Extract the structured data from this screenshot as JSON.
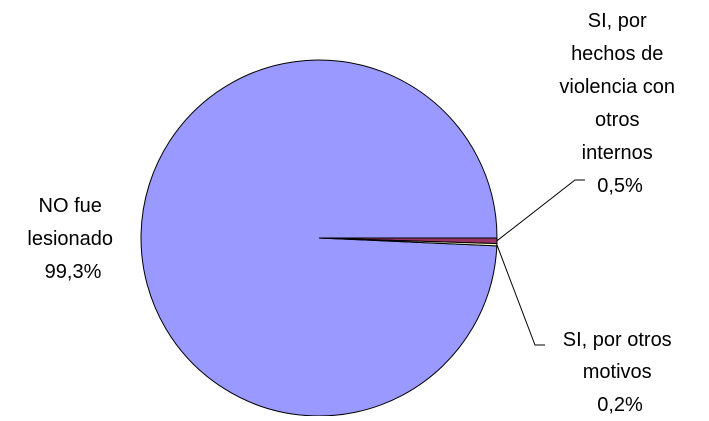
{
  "chart_data": {
    "type": "pie",
    "title": "",
    "start_angle_deg": 0,
    "direction": "clockwise",
    "series": [
      {
        "values": [
          99.3,
          0.5,
          0.2
        ],
        "labels": [
          "NO fue lesionado",
          "SI, por hechos de violencia con otros internos",
          "SI, por otros motivos"
        ],
        "value_labels": [
          "99,3%",
          "0,5%",
          "0,2%"
        ],
        "colors": [
          "#9999ff",
          "#993366",
          "#ffffcc"
        ]
      }
    ],
    "legend": "none"
  },
  "slice_labels": [
    {
      "lines": [
        "NO fue",
        "lesionado",
        "99,3%"
      ]
    },
    {
      "lines": [
        "SI, por",
        "hechos de",
        "violencia con",
        "otros",
        "internos",
        "0,5%"
      ]
    },
    {
      "lines": [
        "SI, por otros",
        "motivos",
        "0,2%"
      ]
    }
  ],
  "colors": {
    "edge": "#000000",
    "background": "#ffffff"
  }
}
